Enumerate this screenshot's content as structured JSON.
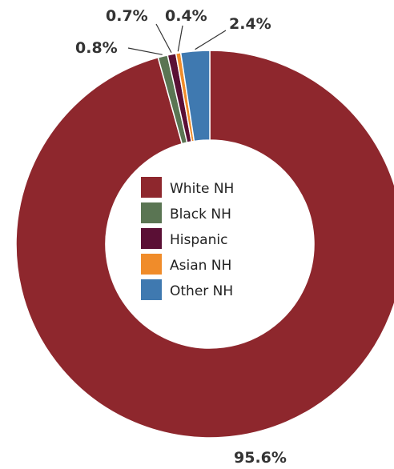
{
  "chart_data": {
    "type": "pie",
    "donut": true,
    "categories": [
      "White NH",
      "Black NH",
      "Hispanic",
      "Asian NH",
      "Other NH"
    ],
    "values": [
      95.6,
      0.8,
      0.7,
      0.4,
      2.4
    ],
    "labels": [
      "95.6%",
      "0.8%",
      "0.7%",
      "0.4%",
      "2.4%"
    ],
    "colors": [
      "#8e272d",
      "#5a7553",
      "#5a0f35",
      "#f08c2a",
      "#3f79b0"
    ],
    "legend": {
      "position": "center",
      "entries": [
        "White NH",
        "Black NH",
        "Hispanic",
        "Asian NH",
        "Other NH"
      ]
    }
  }
}
